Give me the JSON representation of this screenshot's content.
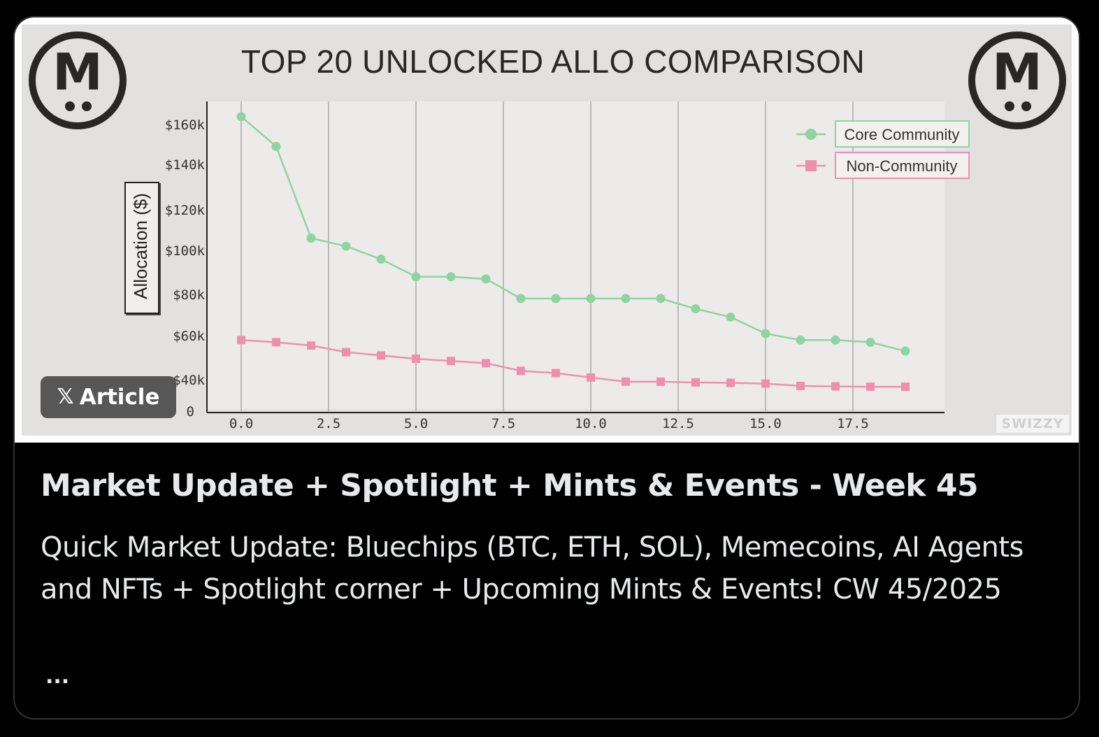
{
  "article": {
    "badge_label": "Article",
    "badge_icon": "x-logo-icon",
    "title": "Market Update + Spotlight + Mints & Events - Week 45",
    "description": "Quick Market Update: Bluechips (BTC, ETH, SOL), Memecoins, AI Agents and NFTs + Spotlight corner + Upcoming Mints & Events! CW 45/2025",
    "more": "..."
  },
  "media": {
    "logo_letter": "M",
    "watermark": "SWIZZY"
  },
  "chart_data": {
    "type": "line",
    "title": "TOP 20 UNLOCKED ALLO COMPARISON",
    "xlabel": "",
    "ylabel": "Allocation ($)",
    "xlim": [
      -1,
      20
    ],
    "ylim": [
      0,
      170000
    ],
    "grid": "vertical",
    "legend_position": "top-right",
    "x_ticks": [
      0.0,
      2.5,
      5.0,
      7.5,
      10.0,
      12.5,
      15.0,
      17.5
    ],
    "x_tick_labels": [
      "0.0",
      "2.5",
      "5.0",
      "7.5",
      "10.0",
      "12.5",
      "15.0",
      "17.5"
    ],
    "y_tick_labels": [
      "0",
      "$40k",
      "$60k",
      "$80k",
      "$100k",
      "$120k",
      "$140k",
      "$160k"
    ],
    "y_tick_values": [
      0,
      40000,
      60000,
      80000,
      100000,
      120000,
      140000,
      160000
    ],
    "x": [
      0,
      1,
      2,
      3,
      4,
      5,
      6,
      7,
      8,
      9,
      10,
      11,
      12,
      13,
      14,
      15,
      16,
      17,
      18,
      19
    ],
    "series": [
      {
        "name": "Core Community",
        "color": "#8fd3a0",
        "marker": "circle",
        "values": [
          164000,
          149000,
          106000,
          102000,
          96000,
          88000,
          88000,
          87000,
          78000,
          78000,
          78000,
          78000,
          78000,
          73000,
          69000,
          61000,
          58000,
          58000,
          57000,
          53000
        ]
      },
      {
        "name": "Non-Community",
        "color": "#ef8fb0",
        "marker": "square",
        "values": [
          58000,
          57000,
          55500,
          52500,
          51000,
          49500,
          48500,
          47500,
          44000,
          43000,
          41000,
          37500,
          37500,
          36500,
          36000,
          35000,
          32000,
          31500,
          31000,
          31000
        ]
      }
    ]
  }
}
